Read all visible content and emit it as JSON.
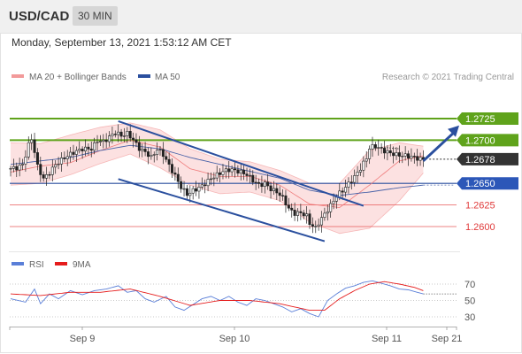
{
  "header": {
    "pair": "USD/CAD",
    "timeframe": "30 MIN"
  },
  "date_line": "Monday, September 13, 2021 1:53:12 AM CET",
  "legend": {
    "bollinger": "MA 20 + Bollinger Bands",
    "ma50": "MA 50",
    "credit": "Research © 2021 Trading Central",
    "rsi": "RSI",
    "rsi_ma": "9MA"
  },
  "colors": {
    "green": "#5fa31b",
    "blue": "#2a4f9e",
    "red": "#e85a5a",
    "candle": "#222222",
    "bollinger_fill": "#fbd7d7",
    "rsi": "#5a7fd8",
    "rsi_ma": "#e51c1c"
  },
  "chart_data": [
    {
      "type": "candlestick",
      "title": "USD/CAD",
      "x_ticks": [
        "Sep 9",
        "Sep 10",
        "Sep 11",
        "Sep 21"
      ],
      "ylim": [
        1.2583,
        1.2745
      ],
      "levels": [
        {
          "value": 1.2725,
          "label": "1.2725",
          "style": "green"
        },
        {
          "value": 1.27,
          "label": "1.2700",
          "style": "green"
        },
        {
          "value": 1.2678,
          "label": "1.2678",
          "style": "dark"
        },
        {
          "value": 1.265,
          "label": "1.2650",
          "style": "blue"
        },
        {
          "value": 1.2625,
          "label": "1.2625",
          "style": "red"
        },
        {
          "value": 1.26,
          "label": "1.2600",
          "style": "red"
        }
      ],
      "price_path": [
        [
          0,
          1.2667
        ],
        [
          3,
          1.2668
        ],
        [
          5,
          1.2672
        ],
        [
          7,
          1.2696
        ],
        [
          8,
          1.2702
        ],
        [
          10,
          1.2668
        ],
        [
          12,
          1.2655
        ],
        [
          14,
          1.2663
        ],
        [
          16,
          1.2672
        ],
        [
          19,
          1.268
        ],
        [
          22,
          1.2686
        ],
        [
          25,
          1.269
        ],
        [
          28,
          1.269
        ],
        [
          30,
          1.27
        ],
        [
          32,
          1.2698
        ],
        [
          34,
          1.2704
        ],
        [
          36,
          1.2709
        ],
        [
          38,
          1.2705
        ],
        [
          40,
          1.2708
        ],
        [
          42,
          1.27
        ],
        [
          44,
          1.269
        ],
        [
          46,
          1.2686
        ],
        [
          48,
          1.268
        ],
        [
          50,
          1.269
        ],
        [
          52,
          1.2683
        ],
        [
          54,
          1.267
        ],
        [
          56,
          1.2658
        ],
        [
          58,
          1.2645
        ],
        [
          60,
          1.2637
        ],
        [
          62,
          1.2642
        ],
        [
          64,
          1.2645
        ],
        [
          66,
          1.265
        ],
        [
          68,
          1.2656
        ],
        [
          70,
          1.266
        ],
        [
          72,
          1.2664
        ],
        [
          74,
          1.2666
        ],
        [
          76,
          1.2665
        ],
        [
          78,
          1.2663
        ],
        [
          80,
          1.266
        ],
        [
          82,
          1.2653
        ],
        [
          84,
          1.2648
        ],
        [
          86,
          1.265
        ],
        [
          88,
          1.2643
        ],
        [
          90,
          1.264
        ],
        [
          92,
          1.2633
        ],
        [
          94,
          1.262
        ],
        [
          96,
          1.2615
        ],
        [
          98,
          1.2616
        ],
        [
          100,
          1.2612
        ],
        [
          101,
          1.2603
        ],
        [
          103,
          1.2598
        ],
        [
          104,
          1.2605
        ],
        [
          106,
          1.2615
        ],
        [
          108,
          1.2625
        ],
        [
          110,
          1.2636
        ],
        [
          112,
          1.2642
        ],
        [
          114,
          1.265
        ],
        [
          116,
          1.2658
        ],
        [
          118,
          1.2668
        ],
        [
          120,
          1.268
        ],
        [
          121,
          1.2692
        ],
        [
          123,
          1.2693
        ],
        [
          125,
          1.2689
        ],
        [
          127,
          1.2686
        ],
        [
          130,
          1.2683
        ],
        [
          133,
          1.2682
        ],
        [
          136,
          1.268
        ],
        [
          138,
          1.2678
        ]
      ],
      "ma50": [
        [
          0,
          1.2672
        ],
        [
          10,
          1.2676
        ],
        [
          20,
          1.268
        ],
        [
          30,
          1.2688
        ],
        [
          40,
          1.2694
        ],
        [
          50,
          1.269
        ],
        [
          60,
          1.268
        ],
        [
          70,
          1.2672
        ],
        [
          80,
          1.2664
        ],
        [
          90,
          1.2656
        ],
        [
          100,
          1.2642
        ],
        [
          110,
          1.2636
        ],
        [
          120,
          1.264
        ],
        [
          130,
          1.2645
        ],
        [
          138,
          1.2648
        ]
      ],
      "ma20": [
        [
          0,
          1.2663
        ],
        [
          10,
          1.267
        ],
        [
          20,
          1.2674
        ],
        [
          30,
          1.2688
        ],
        [
          40,
          1.27
        ],
        [
          50,
          1.2692
        ],
        [
          60,
          1.2667
        ],
        [
          70,
          1.2658
        ],
        [
          80,
          1.2658
        ],
        [
          90,
          1.2648
        ],
        [
          100,
          1.2626
        ],
        [
          110,
          1.2622
        ],
        [
          120,
          1.2648
        ],
        [
          130,
          1.2676
        ],
        [
          138,
          1.2682
        ]
      ],
      "bb_upper": [
        [
          0,
          1.2697
        ],
        [
          10,
          1.2696
        ],
        [
          20,
          1.2706
        ],
        [
          30,
          1.2715
        ],
        [
          40,
          1.272
        ],
        [
          50,
          1.2712
        ],
        [
          60,
          1.269
        ],
        [
          70,
          1.2678
        ],
        [
          80,
          1.2675
        ],
        [
          90,
          1.2665
        ],
        [
          100,
          1.265
        ],
        [
          110,
          1.265
        ],
        [
          120,
          1.2688
        ],
        [
          130,
          1.2697
        ],
        [
          138,
          1.2693
        ]
      ],
      "bb_lower": [
        [
          0,
          1.2648
        ],
        [
          10,
          1.265
        ],
        [
          20,
          1.266
        ],
        [
          30,
          1.2673
        ],
        [
          40,
          1.2684
        ],
        [
          50,
          1.2668
        ],
        [
          60,
          1.2648
        ],
        [
          70,
          1.2638
        ],
        [
          80,
          1.264
        ],
        [
          90,
          1.263
        ],
        [
          100,
          1.2605
        ],
        [
          110,
          1.2592
        ],
        [
          120,
          1.2598
        ],
        [
          130,
          1.263
        ],
        [
          138,
          1.2662
        ]
      ],
      "channel": {
        "upper": [
          [
            36,
            1.2722
          ],
          [
            118,
            1.2624
          ]
        ],
        "lower": [
          [
            36,
            1.2655
          ],
          [
            105,
            1.2583
          ]
        ]
      },
      "projection_arrow": [
        [
          138,
          1.2676
        ],
        [
          150,
          1.2717
        ]
      ]
    },
    {
      "type": "line",
      "title": "RSI",
      "yticks": [
        70,
        50,
        30
      ],
      "ylim": [
        20,
        80
      ],
      "series": [
        {
          "name": "RSI",
          "values": [
            [
              0,
              52
            ],
            [
              5,
              48
            ],
            [
              8,
              64
            ],
            [
              10,
              46
            ],
            [
              13,
              58
            ],
            [
              16,
              52
            ],
            [
              20,
              62
            ],
            [
              24,
              57
            ],
            [
              28,
              62
            ],
            [
              32,
              64
            ],
            [
              36,
              68
            ],
            [
              39,
              60
            ],
            [
              42,
              62
            ],
            [
              45,
              52
            ],
            [
              48,
              48
            ],
            [
              52,
              55
            ],
            [
              55,
              42
            ],
            [
              58,
              38
            ],
            [
              61,
              45
            ],
            [
              64,
              52
            ],
            [
              67,
              55
            ],
            [
              70,
              50
            ],
            [
              73,
              55
            ],
            [
              76,
              48
            ],
            [
              79,
              44
            ],
            [
              82,
              52
            ],
            [
              85,
              50
            ],
            [
              88,
              46
            ],
            [
              91,
              42
            ],
            [
              94,
              36
            ],
            [
              97,
              40
            ],
            [
              100,
              34
            ],
            [
              103,
              30
            ],
            [
              106,
              50
            ],
            [
              109,
              58
            ],
            [
              112,
              65
            ],
            [
              115,
              68
            ],
            [
              118,
              72
            ],
            [
              121,
              74
            ],
            [
              124,
              71
            ],
            [
              127,
              68
            ],
            [
              130,
              64
            ],
            [
              133,
              63
            ],
            [
              136,
              60
            ],
            [
              138,
              58
            ]
          ]
        },
        {
          "name": "9MA",
          "values": [
            [
              0,
              58
            ],
            [
              10,
              56
            ],
            [
              20,
              60
            ],
            [
              30,
              60
            ],
            [
              40,
              64
            ],
            [
              50,
              55
            ],
            [
              60,
              44
            ],
            [
              70,
              50
            ],
            [
              80,
              50
            ],
            [
              90,
              46
            ],
            [
              100,
              38
            ],
            [
              105,
              38
            ],
            [
              110,
              52
            ],
            [
              115,
              62
            ],
            [
              120,
              70
            ],
            [
              125,
              73
            ],
            [
              130,
              70
            ],
            [
              135,
              66
            ],
            [
              138,
              62
            ]
          ]
        }
      ],
      "dotted_level": 58
    }
  ]
}
